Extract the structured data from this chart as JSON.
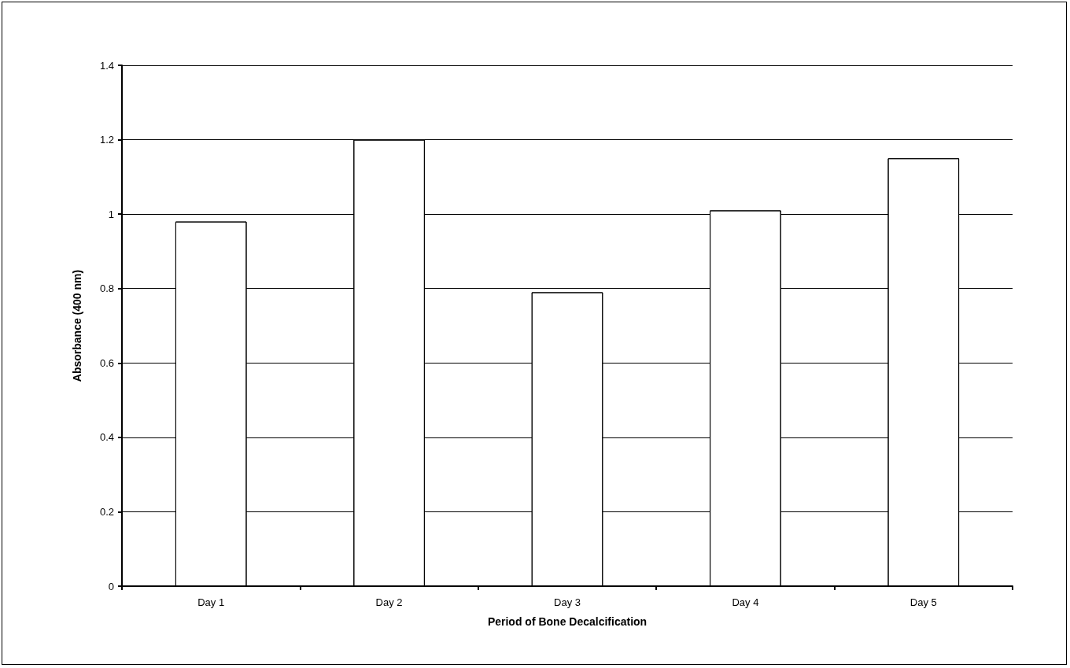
{
  "chart_data": {
    "type": "bar",
    "xlabel": "Period of Bone Decalcification",
    "ylabel": "Absorbance (400 nm)",
    "categories": [
      "Day 1",
      "Day 2",
      "Day 3",
      "Day 4",
      "Day 5"
    ],
    "values": [
      0.98,
      1.2,
      0.79,
      1.01,
      1.15
    ],
    "color": "#ffffff",
    "ylim": [
      0,
      1.4
    ],
    "yticks": [
      0,
      0.2,
      0.4,
      0.6,
      0.8,
      1,
      1.2,
      1.4
    ],
    "grid": "y"
  }
}
